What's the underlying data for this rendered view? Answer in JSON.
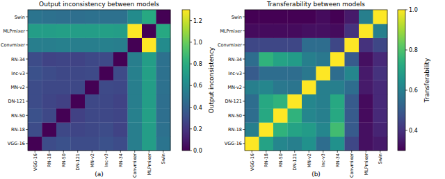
{
  "chart_data": [
    {
      "type": "heatmap",
      "title": "Output inconsistency between models",
      "panel_label": "(a)",
      "color": "viridis",
      "x_categories": [
        "VGG-16",
        "RN-18",
        "RN-50",
        "DN-121",
        "MN-v2",
        "Inc-v3",
        "RN-34",
        "Convmixer",
        "MLPmixer",
        "Swin"
      ],
      "y_categories": [
        "VGG-16",
        "RN-18",
        "RN-50",
        "DN-121",
        "MN-v2",
        "Inc-v3",
        "RN-34",
        "Convmixer",
        "MLPmixer",
        "Swin"
      ],
      "cells": [
        [
          0,
          0.3,
          0.32,
          0.3,
          0.3,
          0.32,
          0.3,
          0.55,
          0.72,
          0.5
        ],
        [
          0.3,
          0,
          0.28,
          0.27,
          0.28,
          0.3,
          0.26,
          0.55,
          0.72,
          0.48
        ],
        [
          0.32,
          0.28,
          0,
          0.25,
          0.28,
          0.28,
          0.27,
          0.56,
          0.73,
          0.47
        ],
        [
          0.3,
          0.27,
          0.25,
          0,
          0.28,
          0.28,
          0.26,
          0.55,
          0.72,
          0.47
        ],
        [
          0.3,
          0.28,
          0.28,
          0.28,
          0,
          0.29,
          0.28,
          0.55,
          0.72,
          0.48
        ],
        [
          0.32,
          0.3,
          0.28,
          0.28,
          0.29,
          0,
          0.29,
          0.56,
          0.73,
          0.48
        ],
        [
          0.3,
          0.26,
          0.27,
          0.26,
          0.28,
          0.29,
          0,
          0.55,
          0.72,
          0.48
        ],
        [
          0.55,
          0.55,
          0.56,
          0.55,
          0.55,
          0.56,
          0.55,
          0,
          1.3,
          0.62
        ],
        [
          0.72,
          0.72,
          0.73,
          0.72,
          0.72,
          0.73,
          0.72,
          1.3,
          0,
          0.78
        ],
        [
          0.5,
          0.48,
          0.47,
          0.47,
          0.48,
          0.48,
          0.48,
          0.62,
          0.78,
          0
        ]
      ],
      "colorbar": {
        "label": "Output inconsistency",
        "range": [
          0,
          1.3
        ],
        "ticks": [
          {
            "value": 0,
            "label": "0.0"
          },
          0.2,
          0.4,
          0.6,
          0.8,
          {
            "value": 1,
            "label": "1.0"
          },
          1.2
        ]
      }
    },
    {
      "type": "heatmap",
      "title": "Transferability between models",
      "panel_label": "(b)",
      "color": "viridis",
      "x_categories": [
        "VGG-16",
        "RN-18",
        "RN-50",
        "DN-121",
        "MN-v2",
        "Inc-v3",
        "RN-34",
        "Convmixer",
        "MLPmixer",
        "Swin"
      ],
      "y_categories": [
        "VGG-16",
        "RN-18",
        "RN-50",
        "DN-121",
        "MN-v2",
        "Inc-v3",
        "RN-34",
        "Convmixer",
        "MLPmixer",
        "Swin"
      ],
      "cells": [
        [
          1.0,
          0.7,
          0.62,
          0.6,
          0.65,
          0.55,
          0.65,
          0.45,
          0.33,
          0.35
        ],
        [
          0.6,
          1.0,
          0.75,
          0.7,
          0.68,
          0.62,
          0.78,
          0.5,
          0.33,
          0.37
        ],
        [
          0.55,
          0.72,
          1.0,
          0.75,
          0.62,
          0.6,
          0.72,
          0.5,
          0.32,
          0.38
        ],
        [
          0.55,
          0.72,
          0.75,
          1.0,
          0.62,
          0.6,
          0.72,
          0.5,
          0.32,
          0.38
        ],
        [
          0.6,
          0.62,
          0.58,
          0.57,
          1.0,
          0.6,
          0.6,
          0.55,
          0.35,
          0.38
        ],
        [
          0.5,
          0.55,
          0.55,
          0.55,
          0.58,
          1.0,
          0.55,
          0.62,
          0.35,
          0.4
        ],
        [
          0.55,
          0.75,
          0.7,
          0.68,
          0.6,
          0.58,
          1.0,
          0.5,
          0.33,
          0.38
        ],
        [
          0.45,
          0.45,
          0.45,
          0.45,
          0.55,
          0.55,
          0.45,
          1.0,
          0.4,
          0.45
        ],
        [
          0.32,
          0.32,
          0.32,
          0.32,
          0.33,
          0.33,
          0.32,
          0.4,
          1.0,
          0.6
        ],
        [
          0.3,
          0.3,
          0.3,
          0.3,
          0.3,
          0.32,
          0.3,
          0.35,
          0.6,
          1.0
        ]
      ],
      "colorbar": {
        "label": "Transferability",
        "range": [
          0.3,
          1.0
        ],
        "ticks": [
          0.4,
          0.6,
          0.8,
          {
            "value": 1,
            "label": "1.0"
          }
        ]
      }
    }
  ]
}
